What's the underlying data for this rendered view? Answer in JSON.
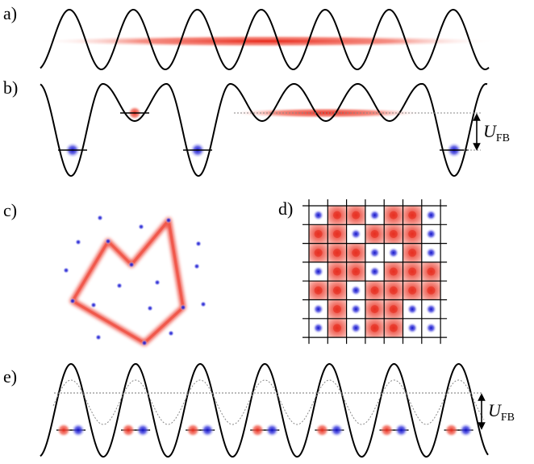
{
  "labels": {
    "a": "a)",
    "b": "b)",
    "c": "c)",
    "d": "d)",
    "e": "e)"
  },
  "energy_label": {
    "symbol": "U",
    "subscript": "FB"
  },
  "colors": {
    "red": "#ef3a2a",
    "blue": "#1f1fd6",
    "line": "#000000",
    "dotted": "#888888"
  },
  "panel_d_grid": [
    [
      "B",
      "R",
      "R",
      "B",
      "R",
      "R",
      "B"
    ],
    [
      "R",
      "R",
      "B",
      "R",
      "R",
      "R",
      "B"
    ],
    [
      "R",
      "R",
      "R",
      "B",
      "B",
      "R",
      "B"
    ],
    [
      "B",
      "R",
      "R",
      "B",
      "R",
      "R",
      "R"
    ],
    [
      "R",
      "R",
      "B",
      "R",
      "R",
      "R",
      "R"
    ],
    [
      "B",
      "R",
      "B",
      "R",
      "R",
      "B",
      "B"
    ],
    [
      "B",
      "R",
      "B",
      "R",
      "R",
      "B",
      "B"
    ]
  ]
}
